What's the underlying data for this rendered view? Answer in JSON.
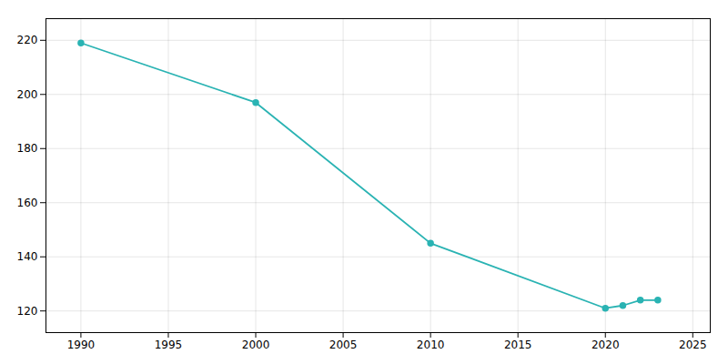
{
  "chart_data": {
    "type": "line",
    "x": [
      1990,
      2000,
      2010,
      2020,
      2021,
      2022,
      2023
    ],
    "values": [
      219,
      197,
      145,
      121,
      122,
      124,
      124
    ],
    "color": "#2ab3b3",
    "marker": "circle",
    "xlim": [
      1988,
      2026
    ],
    "ylim": [
      112,
      228
    ],
    "xticks": [
      1990,
      1995,
      2000,
      2005,
      2010,
      2015,
      2020,
      2025
    ],
    "yticks": [
      120,
      140,
      160,
      180,
      200,
      220
    ],
    "grid": true
  }
}
